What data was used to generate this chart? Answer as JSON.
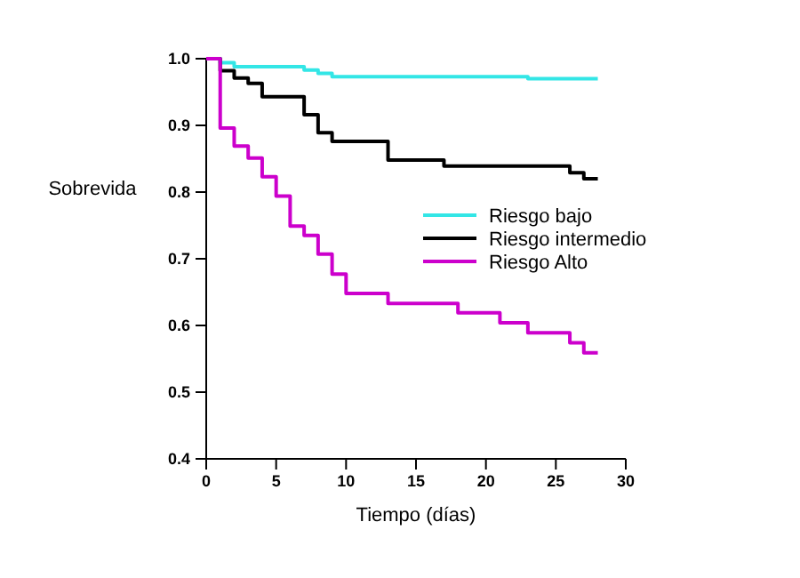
{
  "chart_data": {
    "type": "step",
    "xlabel": "Tiempo (días)",
    "ylabel": "Sobrevida",
    "xlim": [
      0,
      30
    ],
    "ylim": [
      0.4,
      1.0
    ],
    "xticks": [
      0,
      5,
      10,
      15,
      20,
      25,
      30
    ],
    "yticks": [
      {
        "value": 0.4,
        "label": "0.4"
      },
      {
        "value": 0.5,
        "label": "0.5"
      },
      {
        "value": 0.6,
        "label": "0.6"
      },
      {
        "value": 0.7,
        "label": "0.7"
      },
      {
        "value": 0.8,
        "label": "0.8"
      },
      {
        "value": 0.9,
        "label": "0.9"
      },
      {
        "value": 1.0,
        "label": "1.0"
      }
    ],
    "legend": "right",
    "grid": false,
    "series": [
      {
        "name": "Riesgo bajo",
        "color": "#33e6e6",
        "x": [
          0,
          1,
          2,
          7,
          8,
          9,
          23,
          28
        ],
        "values": [
          1.0,
          0.994,
          0.988,
          0.983,
          0.978,
          0.973,
          0.97,
          0.97
        ]
      },
      {
        "name": "Riesgo intermedio",
        "color": "#000000",
        "x": [
          0,
          1,
          2,
          3,
          4,
          7,
          8,
          9,
          13,
          17,
          26,
          27,
          28
        ],
        "values": [
          1.0,
          0.982,
          0.971,
          0.963,
          0.943,
          0.916,
          0.889,
          0.876,
          0.848,
          0.839,
          0.829,
          0.82,
          0.82
        ]
      },
      {
        "name": "Riesgo Alto",
        "color": "#cc00cc",
        "x": [
          0,
          1,
          2,
          3,
          4,
          5,
          6,
          7,
          8,
          9,
          10,
          13,
          18,
          21,
          23,
          26,
          27,
          28
        ],
        "values": [
          1.0,
          0.896,
          0.869,
          0.851,
          0.823,
          0.794,
          0.749,
          0.735,
          0.707,
          0.677,
          0.648,
          0.633,
          0.619,
          0.604,
          0.589,
          0.574,
          0.559,
          0.559
        ]
      }
    ]
  }
}
